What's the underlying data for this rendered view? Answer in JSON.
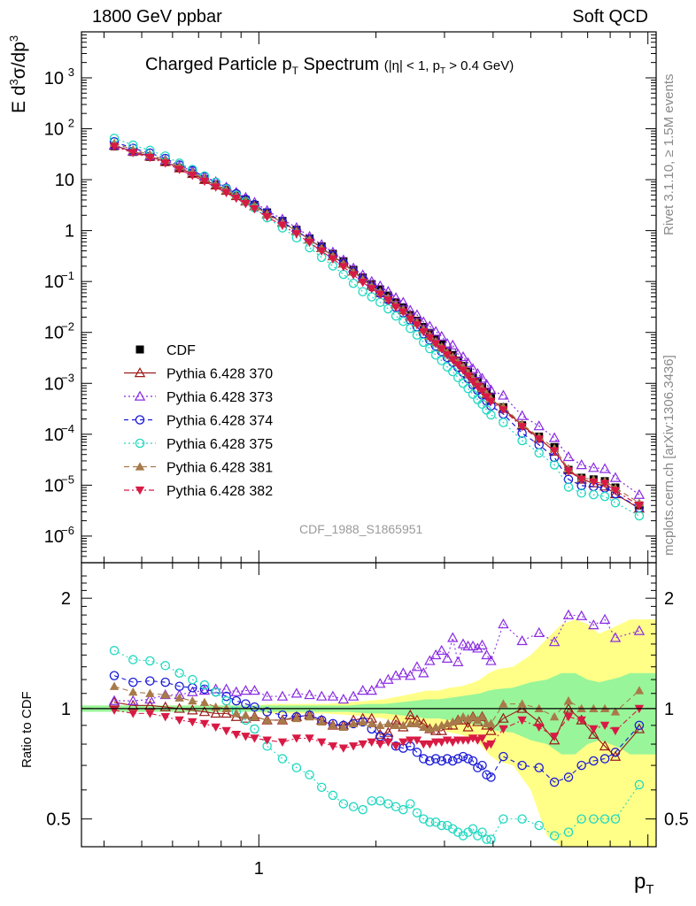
{
  "header": {
    "left": "1800 GeV ppbar",
    "right": "Soft QCD"
  },
  "side_labels": {
    "rivet": "Rivet 3.1.10, ≥ 1.5M events",
    "mcplots": "mcplots.cern.ch [arXiv:1306.3436]"
  },
  "colors": {
    "cdf": "#000000",
    "p370": "#9a1a1a",
    "p373": "#8a2be2",
    "p374": "#1a1ad8",
    "p375": "#20d8c0",
    "p381": "#a87a4a",
    "p382": "#d81a44",
    "band_inner": "#99f599",
    "band_outer": "#ffff88"
  },
  "chart_data": [
    {
      "type": "scatter",
      "title_main": "Charged Particle p",
      "title_sub": "T",
      "title_rest": " Spectrum",
      "title_cut_a": "(|η| < 1, p",
      "title_cut_b": "T",
      "title_cut_c": " > 0.4 GeV)",
      "ylabel_a": "E d",
      "ylabel_b": "3",
      "ylabel_c": "σ/dp",
      "ylabel_d": "3",
      "watermark": "CDF_1988_S1865951",
      "xscale": "log",
      "yscale": "log",
      "xlim": [
        0.35,
        10.5
      ],
      "ylim": [
        3e-07,
        8000
      ],
      "yticks": [
        {
          "v": 1e-06,
          "m": "10",
          "e": "−6"
        },
        {
          "v": 1e-05,
          "m": "10",
          "e": "−5"
        },
        {
          "v": 0.0001,
          "m": "10",
          "e": "−4"
        },
        {
          "v": 0.001,
          "m": "10",
          "e": "−3"
        },
        {
          "v": 0.01,
          "m": "10",
          "e": "−2"
        },
        {
          "v": 0.1,
          "m": "10",
          "e": "−1"
        },
        {
          "v": 1,
          "m": "1",
          "e": ""
        },
        {
          "v": 10,
          "m": "10",
          "e": ""
        },
        {
          "v": 100,
          "m": "10",
          "e": "2"
        },
        {
          "v": 1000,
          "m": "10",
          "e": "3"
        }
      ],
      "legend": [
        "CDF",
        "Pythia 6.428 370",
        "Pythia 6.428 373",
        "Pythia 6.428 374",
        "Pythia 6.428 375",
        "Pythia 6.428 381",
        "Pythia 6.428 382"
      ],
      "legend_position": "middle-left",
      "x": [
        0.425,
        0.475,
        0.525,
        0.575,
        0.625,
        0.675,
        0.725,
        0.775,
        0.825,
        0.875,
        0.925,
        0.975,
        1.05,
        1.15,
        1.25,
        1.35,
        1.45,
        1.55,
        1.65,
        1.75,
        1.85,
        1.95,
        2.05,
        2.15,
        2.25,
        2.35,
        2.45,
        2.55,
        2.65,
        2.75,
        2.85,
        2.95,
        3.05,
        3.15,
        3.25,
        3.35,
        3.45,
        3.55,
        3.65,
        3.75,
        3.85,
        3.95,
        4.25,
        4.75,
        5.25,
        5.75,
        6.25,
        6.75,
        7.25,
        7.75,
        8.25,
        9.5
      ],
      "series": [
        {
          "name": "CDF",
          "marker": "square",
          "values": [
            45.2,
            35.0,
            28.0,
            22.2,
            16.9,
            13.2,
            10.2,
            8.04,
            6.3,
            5.05,
            3.99,
            3.2,
            2.28,
            1.55,
            1.04,
            0.7,
            0.49,
            0.35,
            0.25,
            0.17,
            0.12,
            0.089,
            0.07,
            0.053,
            0.039,
            0.031,
            0.022,
            0.017,
            0.0128,
            0.0098,
            0.0074,
            0.0058,
            0.0044,
            0.0036,
            0.0028,
            0.0022,
            0.0017,
            0.0013,
            0.00106,
            0.00084,
            0.00068,
            0.00055,
            0.00034,
            0.00015,
            9e-05,
            5.6e-05,
            2e-05,
            1.4e-05,
            1.3e-05,
            1.2e-05,
            9e-06,
            4e-06
          ]
        },
        {
          "name": "Pythia 6.428 370",
          "marker": "triangle-up-open",
          "dash": "",
          "values": [
            46.9,
            35.7,
            28.6,
            22.4,
            16.9,
            13.1,
            10.0,
            7.77,
            6.1,
            4.82,
            3.77,
            3.04,
            2.11,
            1.44,
            0.99,
            0.675,
            0.455,
            0.316,
            0.226,
            0.158,
            0.113,
            0.0833,
            0.0595,
            0.0458,
            0.0363,
            0.0276,
            0.0211,
            0.0158,
            0.0117,
            0.00863,
            0.00646,
            0.00507,
            0.00397,
            0.00323,
            0.0026,
            0.00205,
            0.00152,
            0.00123,
            0.00097,
            0.000798,
            0.000614,
            0.00048,
            0.00032,
            0.00015,
            8.3e-05,
            4.6e-05,
            2e-05,
            1.3e-05,
            1.1e-05,
            9.5e-06,
            6.7e-06,
            3.5e-06
          ]
        },
        {
          "name": "Pythia 6.428 373",
          "marker": "triangle-up-open",
          "dash": "2,3",
          "values": [
            47.5,
            36.7,
            29.7,
            24.2,
            18.5,
            14.7,
            11.4,
            9.09,
            7.12,
            5.63,
            4.48,
            3.57,
            2.47,
            1.67,
            1.14,
            0.765,
            0.529,
            0.377,
            0.264,
            0.183,
            0.134,
            0.0999,
            0.0817,
            0.0636,
            0.0478,
            0.0389,
            0.0271,
            0.0221,
            0.016,
            0.0132,
            0.0104,
            0.00834,
            0.00601,
            0.00561,
            0.00374,
            0.00331,
            0.00252,
            0.00193,
            0.00155,
            0.00125,
            0.00095,
            0.00074,
            0.00058,
            0.00023,
            0.000145,
            8.5e-05,
            3.6e-05,
            2.5e-05,
            2.2e-05,
            2.1e-05,
            1.4e-05,
            6.5e-06
          ]
        },
        {
          "name": "Pythia 6.428 374",
          "marker": "circle-open",
          "dash": "5,4",
          "values": [
            55.5,
            41.3,
            33.3,
            26.1,
            19.4,
            15.0,
            11.5,
            8.9,
            6.8,
            5.3,
            4.12,
            3.24,
            2.23,
            1.49,
            0.99,
            0.671,
            0.456,
            0.319,
            0.224,
            0.154,
            0.11,
            0.0783,
            0.059,
            0.0439,
            0.031,
            0.0242,
            0.0175,
            0.0129,
            0.0094,
            0.0071,
            0.0054,
            0.0042,
            0.0032,
            0.0026,
            0.00205,
            0.00163,
            0.00124,
            0.00093,
            0.00073,
            0.00059,
            0.00045,
            0.00036,
            0.00025,
            0.000105,
            6.2e-05,
            3.5e-05,
            1.3e-05,
            9.8e-06,
            9.4e-06,
            8.8e-06,
            6.8e-06,
            3.6e-06
          ]
        },
        {
          "name": "Pythia 6.428 375",
          "marker": "circle-open",
          "dash": "2,3",
          "values": [
            64.9,
            47.7,
            37.7,
            29.1,
            21.1,
            15.9,
            11.8,
            8.89,
            6.61,
            4.95,
            3.71,
            2.8,
            1.79,
            1.13,
            0.72,
            0.461,
            0.298,
            0.202,
            0.138,
            0.092,
            0.063,
            0.05,
            0.039,
            0.029,
            0.021,
            0.0165,
            0.012,
            0.0089,
            0.0064,
            0.0048,
            0.0036,
            0.0028,
            0.0021,
            0.0017,
            0.0013,
            0.001,
            0.00079,
            0.00061,
            0.00048,
            0.00039,
            0.0003,
            0.00024,
            0.00017,
            7.5e-05,
            4.3e-05,
            2.5e-05,
            9.2e-06,
            7e-06,
            6.5e-06,
            6e-06,
            4.5e-06,
            2.5e-06
          ]
        },
        {
          "name": "Pythia 6.428 381",
          "marker": "triangle-up-filled",
          "dash": "6,4",
          "values": [
            52.0,
            38.9,
            30.8,
            24.2,
            18.1,
            13.8,
            10.6,
            8.12,
            6.28,
            4.9,
            3.82,
            3.04,
            2.12,
            1.44,
            0.98,
            0.664,
            0.45,
            0.315,
            0.222,
            0.154,
            0.11,
            0.081,
            0.063,
            0.048,
            0.035,
            0.028,
            0.02,
            0.0155,
            0.0114,
            0.0086,
            0.0066,
            0.0052,
            0.004,
            0.0033,
            0.0026,
            0.0021,
            0.0016,
            0.00123,
            0.00099,
            0.0008,
            0.00062,
            0.0005,
            0.00035,
            0.000155,
            9e-05,
            5.3e-05,
            2.1e-05,
            1.4e-05,
            1.3e-05,
            1.2e-05,
            8.8e-06,
            4.5e-06
          ]
        },
        {
          "name": "Pythia 6.428 382",
          "marker": "triangle-down-filled",
          "dash": "6,3,2,3",
          "values": [
            44.7,
            33.9,
            27.2,
            21.1,
            15.8,
            12.1,
            9.28,
            7.14,
            5.51,
            4.3,
            3.36,
            2.66,
            1.86,
            1.26,
            0.86,
            0.583,
            0.395,
            0.276,
            0.195,
            0.135,
            0.096,
            0.072,
            0.056,
            0.043,
            0.031,
            0.025,
            0.018,
            0.014,
            0.0102,
            0.0078,
            0.006,
            0.0047,
            0.0036,
            0.0029,
            0.0023,
            0.0018,
            0.0014,
            0.00108,
            0.00087,
            0.0007,
            0.00054,
            0.00044,
            0.0003,
            0.00014,
            8e-05,
            4.7e-05,
            1.9e-05,
            1.3e-05,
            1.15e-05,
            1.08e-05,
            7.8e-06,
            4e-06
          ]
        }
      ]
    },
    {
      "type": "scatter",
      "ylabel": "Ratio to CDF",
      "xlabel_main": "p",
      "xlabel_sub": "T",
      "xscale": "log",
      "yscale": "log",
      "xlim": [
        0.35,
        10.5
      ],
      "ylim": [
        0.42,
        2.5
      ],
      "xticks": [
        {
          "v": 1,
          "label": "1"
        }
      ],
      "yticks": [
        {
          "v": 0.5,
          "label": "0.5"
        },
        {
          "v": 1,
          "label": "1"
        },
        {
          "v": 2,
          "label": "2"
        }
      ],
      "reference_line": 1,
      "band_x": [
        0.35,
        0.45,
        0.55,
        0.65,
        0.75,
        0.85,
        0.95,
        1.1,
        1.3,
        1.5,
        1.7,
        1.9,
        2.1,
        2.3,
        2.5,
        2.7,
        2.9,
        3.1,
        3.3,
        3.5,
        3.7,
        3.9,
        4.1,
        4.5,
        5.0,
        5.5,
        6.0,
        6.5,
        7.0,
        7.5,
        8.0,
        8.5,
        9.0,
        10.5
      ],
      "band_inner": [
        0.02,
        0.02,
        0.02,
        0.02,
        0.02,
        0.02,
        0.02,
        0.02,
        0.02,
        0.02,
        0.02,
        0.03,
        0.03,
        0.04,
        0.05,
        0.06,
        0.06,
        0.07,
        0.08,
        0.09,
        0.1,
        0.12,
        0.13,
        0.14,
        0.18,
        0.2,
        0.25,
        0.25,
        0.2,
        0.18,
        0.2,
        0.22,
        0.25,
        0.25
      ],
      "band_outer": [
        0.02,
        0.02,
        0.02,
        0.02,
        0.02,
        0.02,
        0.02,
        0.03,
        0.03,
        0.03,
        0.04,
        0.05,
        0.06,
        0.08,
        0.1,
        0.12,
        0.12,
        0.14,
        0.15,
        0.17,
        0.2,
        0.25,
        0.28,
        0.3,
        0.4,
        0.55,
        0.7,
        0.75,
        0.7,
        0.6,
        0.65,
        0.7,
        0.75,
        0.75
      ],
      "x": [
        0.425,
        0.475,
        0.525,
        0.575,
        0.625,
        0.675,
        0.725,
        0.775,
        0.825,
        0.875,
        0.925,
        0.975,
        1.05,
        1.15,
        1.25,
        1.35,
        1.45,
        1.55,
        1.65,
        1.75,
        1.85,
        1.95,
        2.05,
        2.15,
        2.25,
        2.35,
        2.45,
        2.55,
        2.65,
        2.75,
        2.85,
        2.95,
        3.05,
        3.15,
        3.25,
        3.35,
        3.45,
        3.55,
        3.65,
        3.75,
        3.85,
        3.95,
        4.25,
        4.75,
        5.25,
        5.75,
        6.25,
        6.75,
        7.25,
        7.75,
        8.25,
        9.5
      ],
      "series": [
        {
          "name": "Pythia 6.428 370",
          "values": [
            1.04,
            1.02,
            1.02,
            1.01,
            1.0,
            0.99,
            0.98,
            0.97,
            0.97,
            0.95,
            0.94,
            0.95,
            0.93,
            0.93,
            0.95,
            0.96,
            0.93,
            0.9,
            0.9,
            0.93,
            0.94,
            0.94,
            0.85,
            0.86,
            0.93,
            0.89,
            0.96,
            0.93,
            0.91,
            0.88,
            0.87,
            0.87,
            0.9,
            0.9,
            0.93,
            0.93,
            0.89,
            0.95,
            0.92,
            0.95,
            0.9,
            0.87,
            0.94,
            1.0,
            0.92,
            0.82,
            1.0,
            0.93,
            0.85,
            0.79,
            0.74,
            0.88
          ]
        },
        {
          "name": "Pythia 6.428 373",
          "values": [
            1.05,
            1.05,
            1.06,
            1.09,
            1.09,
            1.11,
            1.12,
            1.13,
            1.13,
            1.11,
            1.12,
            1.12,
            1.08,
            1.08,
            1.1,
            1.09,
            1.08,
            1.08,
            1.06,
            1.08,
            1.12,
            1.12,
            1.17,
            1.2,
            1.23,
            1.25,
            1.23,
            1.3,
            1.25,
            1.35,
            1.4,
            1.44,
            1.37,
            1.56,
            1.34,
            1.5,
            1.48,
            1.48,
            1.46,
            1.49,
            1.4,
            1.35,
            1.7,
            1.53,
            1.61,
            1.52,
            1.8,
            1.79,
            1.69,
            1.75,
            1.56,
            1.63
          ]
        },
        {
          "name": "Pythia 6.428 374",
          "values": [
            1.23,
            1.18,
            1.19,
            1.18,
            1.15,
            1.14,
            1.13,
            1.11,
            1.08,
            1.05,
            1.03,
            1.01,
            0.98,
            0.96,
            0.95,
            0.96,
            0.93,
            0.91,
            0.9,
            0.91,
            0.92,
            0.88,
            0.84,
            0.83,
            0.79,
            0.78,
            0.79,
            0.76,
            0.73,
            0.72,
            0.73,
            0.72,
            0.73,
            0.72,
            0.73,
            0.74,
            0.73,
            0.72,
            0.69,
            0.7,
            0.66,
            0.65,
            0.74,
            0.7,
            0.69,
            0.63,
            0.65,
            0.7,
            0.72,
            0.73,
            0.76,
            0.9
          ]
        },
        {
          "name": "Pythia 6.428 375",
          "values": [
            1.44,
            1.36,
            1.35,
            1.31,
            1.25,
            1.2,
            1.16,
            1.11,
            1.05,
            0.98,
            0.93,
            0.88,
            0.79,
            0.73,
            0.69,
            0.66,
            0.61,
            0.58,
            0.55,
            0.54,
            0.53,
            0.56,
            0.56,
            0.55,
            0.54,
            0.53,
            0.55,
            0.52,
            0.5,
            0.49,
            0.49,
            0.48,
            0.48,
            0.47,
            0.46,
            0.45,
            0.46,
            0.47,
            0.45,
            0.46,
            0.44,
            0.44,
            0.5,
            0.5,
            0.48,
            0.45,
            0.46,
            0.5,
            0.5,
            0.5,
            0.5,
            0.62
          ]
        },
        {
          "name": "Pythia 6.428 381",
          "values": [
            1.15,
            1.11,
            1.1,
            1.09,
            1.07,
            1.05,
            1.04,
            1.01,
            1.0,
            0.97,
            0.96,
            0.95,
            0.93,
            0.93,
            0.94,
            0.95,
            0.92,
            0.9,
            0.89,
            0.91,
            0.92,
            0.91,
            0.9,
            0.91,
            0.9,
            0.9,
            0.91,
            0.91,
            0.89,
            0.88,
            0.89,
            0.9,
            0.91,
            0.92,
            0.93,
            0.95,
            0.94,
            0.95,
            0.93,
            0.95,
            0.91,
            0.91,
            1.03,
            1.03,
            1.0,
            0.95,
            1.05,
            1.0,
            1.0,
            1.0,
            0.98,
            1.12
          ]
        },
        {
          "name": "Pythia 6.428 382",
          "values": [
            0.99,
            0.97,
            0.97,
            0.95,
            0.93,
            0.92,
            0.91,
            0.89,
            0.87,
            0.85,
            0.84,
            0.83,
            0.82,
            0.81,
            0.83,
            0.83,
            0.81,
            0.79,
            0.78,
            0.79,
            0.8,
            0.81,
            0.8,
            0.81,
            0.79,
            0.81,
            0.82,
            0.82,
            0.8,
            0.8,
            0.81,
            0.81,
            0.82,
            0.81,
            0.82,
            0.82,
            0.82,
            0.83,
            0.82,
            0.83,
            0.79,
            0.8,
            0.88,
            0.93,
            0.89,
            0.84,
            0.95,
            0.93,
            0.88,
            0.9,
            0.87,
            1.0
          ]
        }
      ]
    }
  ]
}
